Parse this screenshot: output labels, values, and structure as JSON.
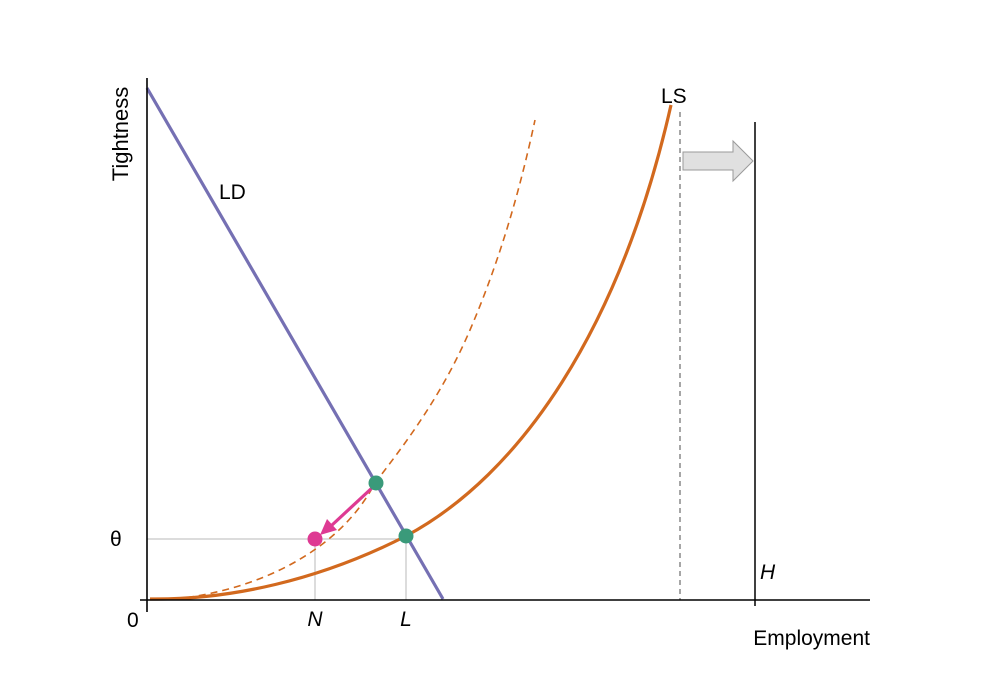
{
  "axes": {
    "y_label": "Tightness",
    "x_label": "Employment",
    "origin_label": "0",
    "theta_label": "θ"
  },
  "curves": {
    "labor_demand_label": "LD",
    "labor_supply_label": "LS",
    "labor_force_label": "H"
  },
  "markers": {
    "n_label": "N",
    "l_label": "L"
  },
  "colors": {
    "labor_demand": "#7570b3",
    "labor_supply": "#d2691e",
    "equilibrium_point": "#3a9a7a",
    "new_point": "#de3a93",
    "shift_arrow_fill": "#e0e0e0",
    "guide_lines": "#c8c8c8"
  }
}
